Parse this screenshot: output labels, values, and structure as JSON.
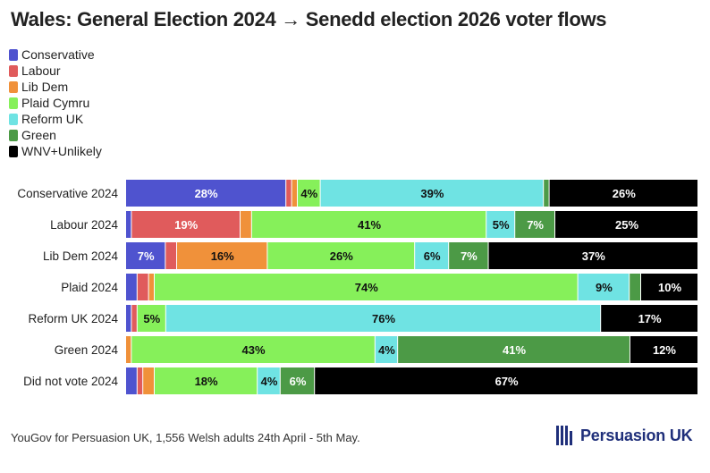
{
  "page": {
    "title": "Wales: General Election 2024 → Senedd election 2026 voter flows",
    "source": "YouGov for Persuasion UK, 1,556 Welsh adults 24th April - 5th May.",
    "brand": "Persuasion UK"
  },
  "chart_data": {
    "type": "bar",
    "orientation": "horizontal",
    "stacked": true,
    "percent_scale": [
      0,
      100
    ],
    "legend_position": "top-left",
    "categories": [
      "Conservative 2024",
      "Labour 2024",
      "Lib Dem 2024",
      "Plaid 2024",
      "Reform UK 2024",
      "Green 2024",
      "Did not vote 2024"
    ],
    "series": [
      {
        "name": "Conservative",
        "color": "#4f53cf",
        "values": [
          28,
          1,
          7,
          2,
          1,
          0,
          2
        ]
      },
      {
        "name": "Labour",
        "color": "#e05b5c",
        "values": [
          1,
          19,
          2,
          2,
          1,
          0,
          1
        ]
      },
      {
        "name": "Lib Dem",
        "color": "#f0913a",
        "values": [
          1,
          2,
          16,
          1,
          0,
          1,
          2
        ]
      },
      {
        "name": "Plaid Cymru",
        "color": "#86f05a",
        "values": [
          4,
          41,
          26,
          74,
          5,
          43,
          18
        ]
      },
      {
        "name": "Reform UK",
        "color": "#6fe3e3",
        "values": [
          39,
          5,
          6,
          9,
          76,
          4,
          4
        ]
      },
      {
        "name": "Green",
        "color": "#4c9a46",
        "values": [
          1,
          7,
          7,
          2,
          0,
          41,
          6
        ]
      },
      {
        "name": "WNV+Unlikely",
        "color": "#000000",
        "values": [
          26,
          25,
          37,
          10,
          17,
          12,
          67
        ]
      }
    ],
    "data_labels": [
      [
        "28%",
        "",
        "",
        "4%",
        "39%",
        "",
        "26%"
      ],
      [
        "",
        "19%",
        "",
        "41%",
        "5%",
        "7%",
        "25%"
      ],
      [
        "7%",
        "",
        "16%",
        "26%",
        "6%",
        "7%",
        "37%"
      ],
      [
        "",
        "",
        "",
        "74%",
        "9%",
        "",
        "10%"
      ],
      [
        "",
        "",
        "",
        "5%",
        "76%",
        "",
        "17%"
      ],
      [
        "",
        "",
        "",
        "43%",
        "4%",
        "41%",
        "12%"
      ],
      [
        "",
        "",
        "",
        "18%",
        "4%",
        "6%",
        "67%"
      ]
    ]
  }
}
